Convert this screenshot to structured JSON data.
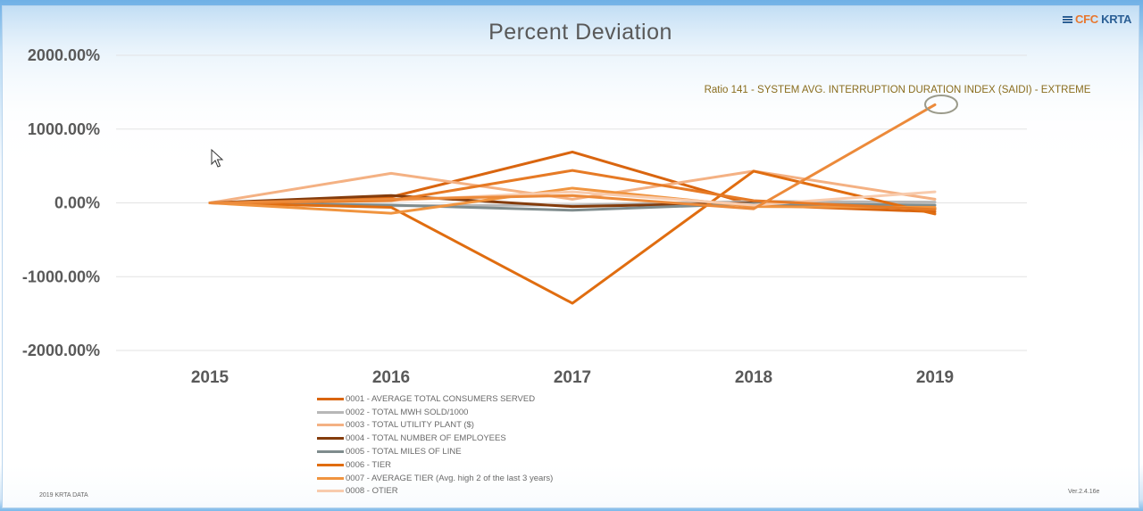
{
  "logo": {
    "part1": "CFC",
    "part2": " KRTA"
  },
  "footer_left": "2019 KRTA DATA",
  "footer_right": "Ver.2.4.16e",
  "chart_data": {
    "type": "line",
    "title": "Percent Deviation",
    "xlabel": "",
    "ylabel": "",
    "categories": [
      "2015",
      "2016",
      "2017",
      "2018",
      "2019"
    ],
    "ylim": [
      -2000,
      2000
    ],
    "yticks": [
      2000,
      1000,
      0,
      -1000,
      -2000
    ],
    "ytick_labels": [
      "2000.00%",
      "1000.00%",
      "0.00%",
      "-1000.00%",
      "-2000.00%"
    ],
    "grid": true,
    "legend_position": "bottom",
    "annotation": "Ratio 141 - SYSTEM AVG. INTERRUPTION DURATION INDEX (SAIDI) - EXTREME",
    "series": [
      {
        "name": "0001 - AVERAGE TOTAL CONSUMERS SERVED",
        "color": "#d9650f",
        "width": 3,
        "values": [
          0,
          80,
          690,
          -30,
          -120
        ]
      },
      {
        "name": "0002 - TOTAL MWH SOLD/1000",
        "color": "#b7b7b7",
        "width": 3,
        "values": [
          0,
          -40,
          -30,
          20,
          10
        ]
      },
      {
        "name": "0003 - TOTAL UTILITY PLANT ($)",
        "color": "#f4b183",
        "width": 3,
        "values": [
          0,
          400,
          50,
          430,
          50
        ]
      },
      {
        "name": "0004 - TOTAL NUMBER OF EMPLOYEES",
        "color": "#843c0c",
        "width": 3,
        "values": [
          0,
          100,
          -50,
          0,
          -80
        ]
      },
      {
        "name": "0005 - TOTAL MILES OF LINE",
        "color": "#7f8c8d",
        "width": 3,
        "values": [
          0,
          -30,
          -100,
          -10,
          -30
        ]
      },
      {
        "name": "0006 - TIER",
        "color": "#e06d10",
        "width": 3,
        "values": [
          0,
          -60,
          -1360,
          430,
          -150
        ]
      },
      {
        "name": "0007 - AVERAGE TIER (Avg. high 2 of the last 3 years)",
        "color": "#f0943f",
        "width": 3,
        "values": [
          0,
          -140,
          200,
          -50,
          -60
        ]
      },
      {
        "name": "0008 - OTIER",
        "color": "#f8cbad",
        "width": 3,
        "values": [
          0,
          30,
          150,
          -30,
          150
        ]
      },
      {
        "name": "",
        "color": "#e67a25",
        "width": 3,
        "values": [
          0,
          30,
          440,
          30,
          -90
        ]
      },
      {
        "name": "",
        "color": "#ec8a3a",
        "width": 3,
        "values": [
          0,
          50,
          100,
          -80,
          1330
        ]
      }
    ]
  }
}
